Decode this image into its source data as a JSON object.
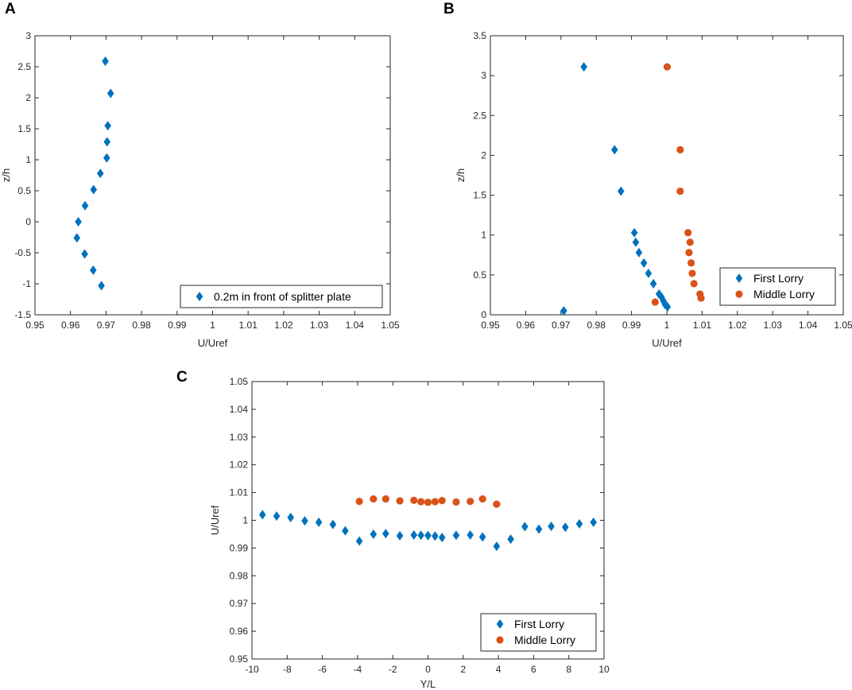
{
  "colors": {
    "first": "#0072BD",
    "middle": "#D95319",
    "axis": "#262626"
  },
  "chart_data": [
    {
      "panel": "A",
      "type": "scatter",
      "xlabel": "U/Uref",
      "ylabel": "z/h",
      "xlim": [
        0.95,
        1.05
      ],
      "ylim": [
        -1.5,
        3
      ],
      "xticks": [
        "0.95",
        "0.96",
        "0.97",
        "0.98",
        "0.99",
        "1",
        "1.01",
        "1.02",
        "1.03",
        "1.04",
        "1.05"
      ],
      "yticks": [
        "-1.5",
        "-1",
        "-0.5",
        "0",
        "0.5",
        "1",
        "1.5",
        "2",
        "2.5",
        "3"
      ],
      "legend_position": "bottom-right",
      "series": [
        {
          "name": "0.2m in front of splitter plate",
          "marker": "diamond",
          "points": [
            [
              0.9698,
              2.59
            ],
            [
              0.9713,
              2.07
            ],
            [
              0.9705,
              1.55
            ],
            [
              0.9703,
              1.29
            ],
            [
              0.9702,
              1.03
            ],
            [
              0.9684,
              0.78
            ],
            [
              0.9665,
              0.52
            ],
            [
              0.9641,
              0.26
            ],
            [
              0.9622,
              0.0
            ],
            [
              0.9618,
              -0.26
            ],
            [
              0.964,
              -0.52
            ],
            [
              0.9664,
              -0.78
            ],
            [
              0.9687,
              -1.03
            ]
          ]
        }
      ]
    },
    {
      "panel": "B",
      "type": "scatter",
      "xlabel": "U/Uref",
      "ylabel": "z/h",
      "xlim": [
        0.95,
        1.05
      ],
      "ylim": [
        0,
        3.5
      ],
      "xticks": [
        "0.95",
        "0.96",
        "0.97",
        "0.98",
        "0.99",
        "1",
        "1.01",
        "1.02",
        "1.03",
        "1.04",
        "1.05"
      ],
      "yticks": [
        "0",
        "0.5",
        "1",
        "1.5",
        "2",
        "2.5",
        "3",
        "3.5"
      ],
      "legend_position": "bottom-right",
      "series": [
        {
          "name": "First Lorry",
          "marker": "diamond",
          "points": [
            [
              0.9765,
              3.11
            ],
            [
              0.9852,
              2.07
            ],
            [
              0.987,
              1.55
            ],
            [
              0.9908,
              1.03
            ],
            [
              0.9912,
              0.91
            ],
            [
              0.9921,
              0.78
            ],
            [
              0.9935,
              0.65
            ],
            [
              0.9948,
              0.52
            ],
            [
              0.9962,
              0.39
            ],
            [
              0.9978,
              0.26
            ],
            [
              0.9985,
              0.22
            ],
            [
              0.9991,
              0.17
            ],
            [
              0.9995,
              0.13
            ],
            [
              1.0002,
              0.1
            ],
            [
              0.9708,
              0.05
            ]
          ]
        },
        {
          "name": "Middle Lorry",
          "marker": "circle",
          "points": [
            [
              1.0001,
              3.11
            ],
            [
              1.0038,
              2.07
            ],
            [
              1.0038,
              1.55
            ],
            [
              1.006,
              1.03
            ],
            [
              1.0066,
              0.91
            ],
            [
              1.0063,
              0.78
            ],
            [
              1.0069,
              0.65
            ],
            [
              1.0072,
              0.52
            ],
            [
              1.0077,
              0.39
            ],
            [
              1.0094,
              0.26
            ],
            [
              1.0097,
              0.21
            ],
            [
              0.9967,
              0.16
            ]
          ]
        }
      ]
    },
    {
      "panel": "C",
      "type": "scatter",
      "xlabel": "Y/L",
      "ylabel": "U/Uref",
      "xlim": [
        -10,
        10
      ],
      "ylim": [
        0.95,
        1.05
      ],
      "xticks": [
        "-10",
        "-8",
        "-6",
        "-4",
        "-2",
        "0",
        "2",
        "4",
        "6",
        "8",
        "10"
      ],
      "yticks": [
        "0.95",
        "0.96",
        "0.97",
        "0.98",
        "0.99",
        "1",
        "1.01",
        "1.02",
        "1.03",
        "1.04",
        "1.05"
      ],
      "legend_position": "bottom-right",
      "series": [
        {
          "name": "First Lorry",
          "marker": "diamond",
          "points": [
            [
              -9.4,
              1.002
            ],
            [
              -8.6,
              1.0015
            ],
            [
              -7.8,
              1.001
            ],
            [
              -7.0,
              0.9998
            ],
            [
              -6.2,
              0.9993
            ],
            [
              -5.4,
              0.9985
            ],
            [
              -4.7,
              0.9962
            ],
            [
              -3.9,
              0.9925
            ],
            [
              -3.1,
              0.995
            ],
            [
              -2.4,
              0.9952
            ],
            [
              -1.6,
              0.9944
            ],
            [
              -0.8,
              0.9947
            ],
            [
              -0.4,
              0.9946
            ],
            [
              0.0,
              0.9945
            ],
            [
              0.4,
              0.9943
            ],
            [
              0.8,
              0.9938
            ],
            [
              1.6,
              0.9946
            ],
            [
              2.4,
              0.9947
            ],
            [
              3.1,
              0.994
            ],
            [
              3.9,
              0.9906
            ],
            [
              4.7,
              0.9932
            ],
            [
              5.5,
              0.9977
            ],
            [
              6.3,
              0.9968
            ],
            [
              7.0,
              0.9978
            ],
            [
              7.8,
              0.9975
            ],
            [
              8.6,
              0.9987
            ],
            [
              9.4,
              0.9993
            ]
          ]
        },
        {
          "name": "Middle Lorry",
          "marker": "circle",
          "points": [
            [
              -3.9,
              1.0068
            ],
            [
              -3.1,
              1.0077
            ],
            [
              -2.4,
              1.0077
            ],
            [
              -1.6,
              1.007
            ],
            [
              -0.8,
              1.0072
            ],
            [
              -0.4,
              1.0067
            ],
            [
              0.0,
              1.0065
            ],
            [
              0.4,
              1.0067
            ],
            [
              0.8,
              1.0071
            ],
            [
              1.6,
              1.0066
            ],
            [
              2.4,
              1.0068
            ],
            [
              3.1,
              1.0077
            ],
            [
              3.9,
              1.0058
            ]
          ]
        }
      ]
    }
  ]
}
